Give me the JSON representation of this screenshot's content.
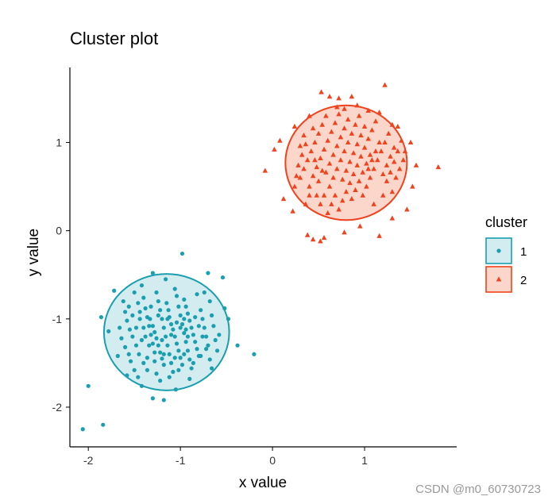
{
  "chart_data": {
    "type": "scatter",
    "title": "Cluster plot",
    "xlabel": "x value",
    "ylabel": "y value",
    "xlim": [
      -2.2,
      2.0
    ],
    "ylim": [
      -2.45,
      1.85
    ],
    "xticks": [
      -2,
      -1,
      0,
      1
    ],
    "yticks": [
      -2,
      -1,
      0,
      1
    ],
    "xtick_labels": [
      "-2",
      "-1",
      "0",
      "1"
    ],
    "ytick_labels": [
      "-2",
      "-1",
      "0",
      "1"
    ],
    "grid": false,
    "legend": {
      "title": "cluster",
      "placement": "right"
    },
    "series": [
      {
        "name": "1",
        "marker": "circle",
        "color": "#1a9eb0",
        "fill": "#d2ecef",
        "ellipse": {
          "cx": -1.15,
          "cy": -1.15,
          "rx": 0.68,
          "ry": 0.66
        },
        "points": [
          [
            -1.72,
            -0.68
          ],
          [
            -1.78,
            -1.14
          ],
          [
            -1.42,
            -0.62
          ],
          [
            -1.3,
            -0.48
          ],
          [
            -1.16,
            -0.55
          ],
          [
            -0.98,
            -0.26
          ],
          [
            -0.7,
            -0.48
          ],
          [
            -0.54,
            -0.53
          ],
          [
            -0.52,
            -0.88
          ],
          [
            -0.48,
            -1.0
          ],
          [
            -0.38,
            -1.3
          ],
          [
            -0.2,
            -1.4
          ],
          [
            -0.66,
            -1.56
          ],
          [
            -0.78,
            -1.42
          ],
          [
            -0.9,
            -1.68
          ],
          [
            -1.05,
            -1.8
          ],
          [
            -1.18,
            -1.92
          ],
          [
            -1.3,
            -1.9
          ],
          [
            -1.42,
            -1.76
          ],
          [
            -1.58,
            -1.64
          ],
          [
            -1.68,
            -1.42
          ],
          [
            -1.86,
            -0.98
          ],
          [
            -2.0,
            -1.76
          ],
          [
            -1.84,
            -2.2
          ],
          [
            -2.06,
            -2.25
          ],
          [
            -1.58,
            -1.02
          ],
          [
            -1.55,
            -1.12
          ],
          [
            -1.52,
            -1.2
          ],
          [
            -1.48,
            -1.3
          ],
          [
            -1.45,
            -1.4
          ],
          [
            -1.4,
            -1.5
          ],
          [
            -1.36,
            -1.58
          ],
          [
            -1.33,
            -1.0
          ],
          [
            -1.3,
            -1.08
          ],
          [
            -1.28,
            -1.15
          ],
          [
            -1.26,
            -1.22
          ],
          [
            -1.24,
            -1.3
          ],
          [
            -1.22,
            -1.38
          ],
          [
            -1.2,
            -1.45
          ],
          [
            -1.18,
            -1.52
          ],
          [
            -1.15,
            -0.82
          ],
          [
            -1.13,
            -0.9
          ],
          [
            -1.12,
            -0.98
          ],
          [
            -1.1,
            -1.06
          ],
          [
            -1.08,
            -1.12
          ],
          [
            -1.06,
            -1.2
          ],
          [
            -1.04,
            -1.28
          ],
          [
            -1.02,
            -1.36
          ],
          [
            -1.0,
            -1.44
          ],
          [
            -0.98,
            -1.52
          ],
          [
            -0.96,
            -0.78
          ],
          [
            -0.94,
            -0.86
          ],
          [
            -0.92,
            -0.94
          ],
          [
            -0.9,
            -1.02
          ],
          [
            -0.88,
            -1.1
          ],
          [
            -0.86,
            -1.18
          ],
          [
            -0.84,
            -1.26
          ],
          [
            -0.82,
            -1.34
          ],
          [
            -0.8,
            -1.42
          ],
          [
            -0.78,
            -0.9
          ],
          [
            -0.76,
            -1.0
          ],
          [
            -0.74,
            -1.1
          ],
          [
            -0.72,
            -1.2
          ],
          [
            -0.7,
            -1.3
          ],
          [
            -0.68,
            -0.8
          ],
          [
            -0.66,
            -0.96
          ],
          [
            -0.64,
            -1.08
          ],
          [
            -0.62,
            -1.24
          ],
          [
            -0.6,
            -1.36
          ],
          [
            -0.58,
            -1.18
          ],
          [
            -1.62,
            -0.8
          ],
          [
            -1.6,
            -0.92
          ],
          [
            -1.5,
            -0.7
          ],
          [
            -1.46,
            -0.82
          ],
          [
            -1.44,
            -0.92
          ],
          [
            -1.4,
            -0.76
          ],
          [
            -1.38,
            -0.88
          ],
          [
            -1.36,
            -0.98
          ],
          [
            -1.34,
            -1.08
          ],
          [
            -1.32,
            -1.18
          ],
          [
            -1.3,
            -1.28
          ],
          [
            -1.28,
            -1.38
          ],
          [
            -1.26,
            -0.7
          ],
          [
            -1.24,
            -0.8
          ],
          [
            -1.22,
            -0.9
          ],
          [
            -1.2,
            -1.0
          ],
          [
            -1.18,
            -1.1
          ],
          [
            -1.16,
            -1.2
          ],
          [
            -1.14,
            -1.3
          ],
          [
            -1.12,
            -1.4
          ],
          [
            -1.1,
            -1.5
          ],
          [
            -1.08,
            -1.6
          ],
          [
            -1.06,
            -0.66
          ],
          [
            -1.04,
            -0.74
          ],
          [
            -1.02,
            -0.86
          ],
          [
            -1.0,
            -0.96
          ],
          [
            -0.98,
            -1.06
          ],
          [
            -0.96,
            -1.16
          ],
          [
            -0.94,
            -1.26
          ],
          [
            -0.92,
            -1.36
          ],
          [
            -0.9,
            -1.46
          ],
          [
            -0.88,
            -1.56
          ],
          [
            -1.54,
            -1.48
          ],
          [
            -1.5,
            -1.58
          ],
          [
            -1.46,
            -1.66
          ],
          [
            -1.26,
            -1.62
          ],
          [
            -1.22,
            -1.7
          ],
          [
            -1.12,
            -1.66
          ],
          [
            -1.02,
            -1.58
          ],
          [
            -0.86,
            -1.5
          ],
          [
            -0.82,
            -0.72
          ],
          [
            -0.74,
            -0.7
          ],
          [
            -1.66,
            -1.1
          ],
          [
            -1.64,
            -1.22
          ],
          [
            -1.6,
            -1.32
          ],
          [
            -1.56,
            -1.4
          ],
          [
            -1.4,
            -1.1
          ],
          [
            -1.38,
            -1.2
          ],
          [
            -1.34,
            -1.3
          ],
          [
            -1.2,
            -1.24
          ],
          [
            -1.1,
            -1.18
          ],
          [
            -1.0,
            -1.1
          ],
          [
            -0.96,
            -1.0
          ],
          [
            -0.84,
            -0.98
          ],
          [
            -0.8,
            -1.08
          ],
          [
            -0.76,
            -1.2
          ],
          [
            -0.72,
            -1.34
          ],
          [
            -0.68,
            -1.46
          ],
          [
            -1.42,
            -1.24
          ],
          [
            -1.36,
            -1.44
          ],
          [
            -1.28,
            -1.48
          ],
          [
            -1.18,
            -1.4
          ],
          [
            -1.06,
            -1.44
          ],
          [
            -0.96,
            -1.4
          ],
          [
            -0.92,
            -1.2
          ],
          [
            -1.44,
            -1.0
          ],
          [
            -1.52,
            -0.96
          ],
          [
            -1.56,
            -0.86
          ],
          [
            -1.48,
            -1.1
          ],
          [
            -1.32,
            -0.86
          ],
          [
            -1.24,
            -0.96
          ],
          [
            -1.14,
            -1.0
          ],
          [
            -1.04,
            -1.04
          ],
          [
            -0.94,
            -1.12
          ]
        ]
      },
      {
        "name": "2",
        "marker": "triangle",
        "color": "#f0421c",
        "fill": "#fbd6cb",
        "ellipse": {
          "cx": 0.8,
          "cy": 0.77,
          "rx": 0.66,
          "ry": 0.65
        },
        "points": [
          [
            0.53,
            1.57
          ],
          [
            0.62,
            1.52
          ],
          [
            0.72,
            1.5
          ],
          [
            0.86,
            1.52
          ],
          [
            1.22,
            1.65
          ],
          [
            1.36,
            1.18
          ],
          [
            1.5,
            1.0
          ],
          [
            1.56,
            0.74
          ],
          [
            1.8,
            0.72
          ],
          [
            1.52,
            0.5
          ],
          [
            1.46,
            0.24
          ],
          [
            1.3,
            0.14
          ],
          [
            1.16,
            -0.06
          ],
          [
            0.95,
            0.05
          ],
          [
            0.78,
            -0.02
          ],
          [
            0.56,
            -0.08
          ],
          [
            0.52,
            -0.12
          ],
          [
            0.44,
            -0.1
          ],
          [
            0.38,
            -0.05
          ],
          [
            0.22,
            0.22
          ],
          [
            0.12,
            0.36
          ],
          [
            -0.08,
            0.68
          ],
          [
            0.02,
            0.92
          ],
          [
            0.08,
            1.02
          ],
          [
            0.24,
            1.18
          ],
          [
            0.4,
            1.3
          ],
          [
            0.3,
            0.6
          ],
          [
            0.34,
            0.7
          ],
          [
            0.38,
            0.8
          ],
          [
            0.42,
            0.9
          ],
          [
            0.46,
            1.0
          ],
          [
            0.5,
            1.1
          ],
          [
            0.54,
            1.2
          ],
          [
            0.58,
            1.3
          ],
          [
            0.62,
            0.5
          ],
          [
            0.66,
            0.6
          ],
          [
            0.7,
            0.7
          ],
          [
            0.74,
            0.8
          ],
          [
            0.78,
            0.9
          ],
          [
            0.82,
            1.0
          ],
          [
            0.86,
            1.1
          ],
          [
            0.9,
            1.2
          ],
          [
            0.94,
            1.3
          ],
          [
            0.98,
            0.4
          ],
          [
            1.02,
            0.5
          ],
          [
            1.06,
            0.6
          ],
          [
            1.1,
            0.7
          ],
          [
            1.14,
            0.8
          ],
          [
            1.18,
            0.9
          ],
          [
            1.22,
            1.0
          ],
          [
            1.26,
            1.1
          ],
          [
            1.3,
            1.2
          ],
          [
            1.34,
            0.6
          ],
          [
            1.38,
            0.7
          ],
          [
            1.42,
            0.8
          ],
          [
            1.44,
            0.9
          ],
          [
            0.24,
            0.5
          ],
          [
            0.26,
            0.62
          ],
          [
            0.28,
            0.74
          ],
          [
            0.32,
            0.86
          ],
          [
            0.36,
            0.98
          ],
          [
            0.44,
            1.16
          ],
          [
            0.48,
            0.4
          ],
          [
            0.52,
            0.3
          ],
          [
            0.56,
            0.4
          ],
          [
            0.6,
            0.2
          ],
          [
            0.64,
            0.3
          ],
          [
            0.68,
            0.4
          ],
          [
            0.72,
            0.24
          ],
          [
            0.76,
            0.34
          ],
          [
            0.8,
            0.44
          ],
          [
            0.84,
            0.54
          ],
          [
            0.88,
            0.64
          ],
          [
            0.92,
            0.74
          ],
          [
            0.96,
            0.84
          ],
          [
            1.0,
            0.94
          ],
          [
            1.04,
            1.04
          ],
          [
            1.08,
            1.14
          ],
          [
            1.12,
            1.24
          ],
          [
            1.16,
            1.34
          ],
          [
            0.7,
            1.4
          ],
          [
            0.78,
            1.38
          ],
          [
            0.92,
            1.42
          ],
          [
            1.04,
            1.36
          ],
          [
            1.1,
            0.3
          ],
          [
            1.2,
            0.4
          ],
          [
            1.24,
            0.56
          ],
          [
            1.28,
            0.66
          ],
          [
            1.32,
            0.78
          ],
          [
            1.36,
            0.9
          ],
          [
            1.4,
            1.02
          ],
          [
            0.4,
            0.5
          ],
          [
            0.44,
            0.62
          ],
          [
            0.48,
            0.72
          ],
          [
            0.52,
            0.82
          ],
          [
            0.56,
            0.92
          ],
          [
            0.6,
            1.02
          ],
          [
            0.64,
            1.12
          ],
          [
            0.68,
            1.22
          ],
          [
            0.72,
            1.32
          ],
          [
            0.76,
            0.58
          ],
          [
            0.8,
            0.68
          ],
          [
            0.84,
            0.78
          ],
          [
            0.88,
            0.88
          ],
          [
            0.92,
            0.98
          ],
          [
            0.96,
            1.08
          ],
          [
            1.0,
            1.18
          ],
          [
            1.04,
            0.7
          ],
          [
            1.08,
            0.8
          ],
          [
            1.12,
            0.9
          ],
          [
            1.16,
            1.0
          ],
          [
            1.2,
            0.64
          ],
          [
            1.24,
            0.74
          ],
          [
            1.28,
            0.84
          ],
          [
            1.32,
            0.94
          ],
          [
            0.58,
            0.66
          ],
          [
            0.62,
            0.76
          ],
          [
            0.66,
            0.86
          ],
          [
            0.7,
            0.96
          ],
          [
            0.74,
            1.06
          ],
          [
            0.78,
            1.16
          ],
          [
            0.82,
            1.26
          ],
          [
            0.86,
            0.36
          ],
          [
            0.9,
            0.46
          ],
          [
            0.94,
            0.56
          ],
          [
            0.98,
            0.66
          ],
          [
            1.02,
            0.76
          ],
          [
            1.06,
            0.86
          ],
          [
            0.5,
            0.56
          ],
          [
            0.54,
            0.68
          ],
          [
            0.46,
            0.8
          ],
          [
            0.34,
            1.08
          ],
          [
            0.3,
            0.96
          ],
          [
            0.4,
            0.4
          ],
          [
            0.36,
            0.3
          ],
          [
            1.3,
            0.44
          ]
        ]
      }
    ]
  },
  "watermark": "CSDN @m0_60730723"
}
